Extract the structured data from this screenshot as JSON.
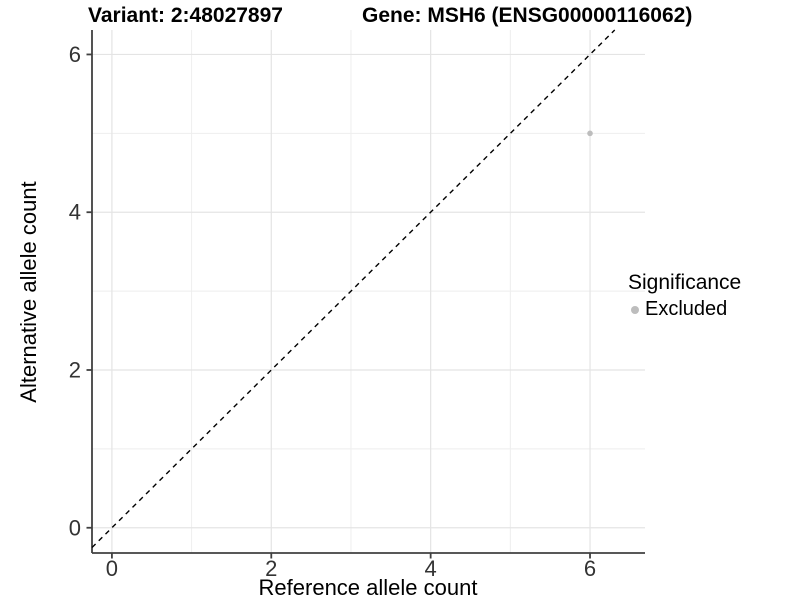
{
  "titles": {
    "variant": "Variant: 2:48027897",
    "gene": "Gene: MSH6 (ENSG00000116062)"
  },
  "legend": {
    "title": "Significance",
    "items": [
      {
        "label": "Excluded",
        "color": "#bdbdbd"
      }
    ]
  },
  "colors": {
    "background": "#ffffff",
    "axis_line": "#404040",
    "tick_label": "#333333",
    "grid_major": "#e4e4e4",
    "grid_minor": "#eeeeee",
    "identity_line": "#000000",
    "point": "#bdbdbd"
  },
  "chart_data": {
    "type": "scatter",
    "title": "Variant: 2:48027897 | Gene: MSH6 (ENSG00000116062)",
    "xlabel": "Reference allele count",
    "ylabel": "Alternative allele count",
    "xlim": [
      -0.25,
      6.69
    ],
    "ylim": [
      -0.32,
      6.31
    ],
    "xticks": [
      0,
      2,
      4,
      6
    ],
    "yticks": [
      0,
      2,
      4,
      6
    ],
    "grid_major_x": [
      0,
      2,
      4,
      6
    ],
    "grid_minor_x": [
      1,
      3,
      5
    ],
    "grid_major_y": [
      0,
      2,
      4,
      6
    ],
    "grid_minor_y": [
      1,
      3,
      5
    ],
    "grid_on": true,
    "legend_position": "right",
    "identity_line": {
      "style": "dashed",
      "color": "#000000",
      "from": -0.25,
      "to": 6.31
    },
    "series": [
      {
        "name": "Excluded",
        "color": "#bdbdbd",
        "marker": "circle",
        "points": [
          {
            "x": 6,
            "y": 5
          }
        ]
      }
    ]
  }
}
